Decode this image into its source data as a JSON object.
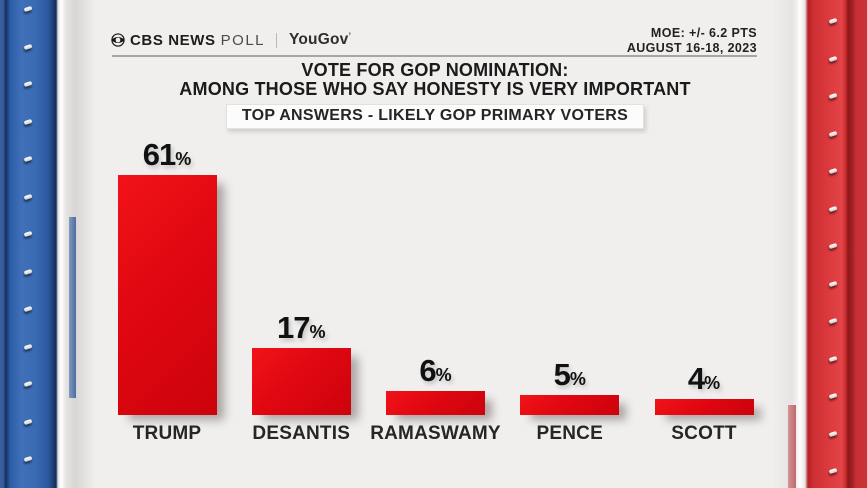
{
  "brand": {
    "cbs": "CBS NEWS",
    "poll": "POLL",
    "partner": "YouGov",
    "partner_mark": "’"
  },
  "meta": {
    "moe": "MOE: +/- 6.2 PTS",
    "dates": "AUGUST 16-18, 2023"
  },
  "title": {
    "line1": "VOTE FOR GOP NOMINATION:",
    "line2": "AMONG THOSE WHO SAY HONESTY IS VERY IMPORTANT"
  },
  "subtitle": "TOP ANSWERS - LIKELY GOP PRIMARY VOTERS",
  "chart_data": {
    "type": "bar",
    "title": "VOTE FOR GOP NOMINATION: AMONG THOSE WHO SAY HONESTY IS VERY IMPORTANT",
    "subtitle": "TOP ANSWERS - LIKELY GOP PRIMARY VOTERS",
    "categories": [
      "TRUMP",
      "DESANTIS",
      "RAMASWAMY",
      "PENCE",
      "SCOTT"
    ],
    "values": [
      61,
      17,
      6,
      5,
      4
    ],
    "value_suffix": "%",
    "ylim": [
      0,
      62
    ],
    "grid": false,
    "legend": false,
    "bar_color": "#e00711"
  },
  "colors": {
    "background": "#f0efee",
    "bar_red": "#e00711",
    "pillar_blue": "#2f5fa9",
    "pillar_red": "#d23236",
    "text_dark": "#1b1b1b"
  }
}
